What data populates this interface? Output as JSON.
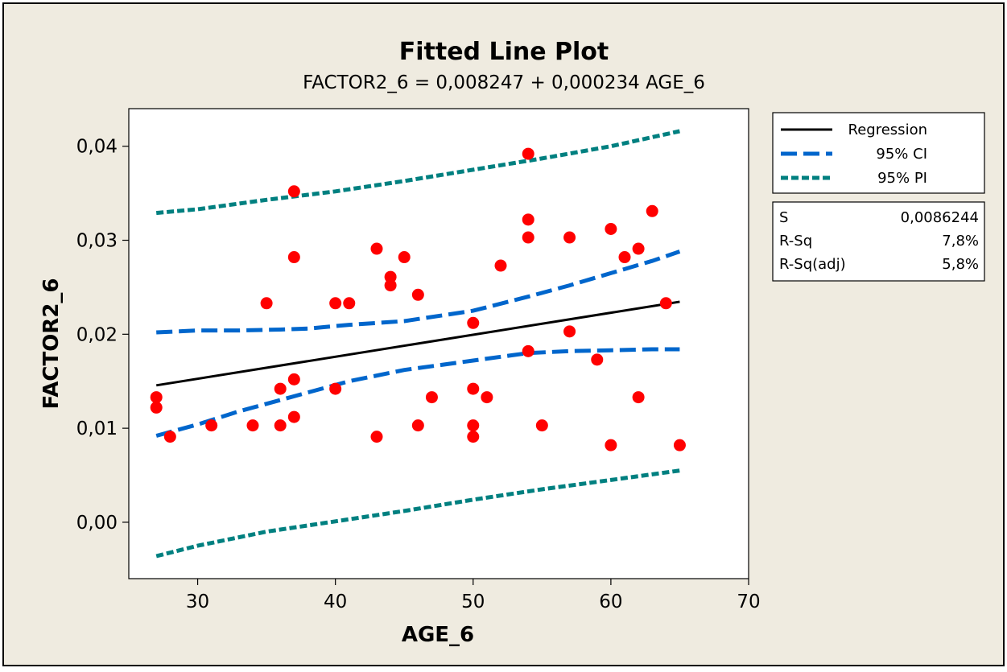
{
  "chart_data": {
    "type": "scatter",
    "title": "Fitted Line Plot",
    "subtitle": "FACTOR2_6 =  0,008247 + 0,000234 AGE_6",
    "xlabel": "AGE_6",
    "ylabel": "FACTOR2_6",
    "xlim": [
      25,
      70
    ],
    "ylim": [
      -0.006,
      0.044
    ],
    "x_ticks": [
      30,
      40,
      50,
      60,
      70
    ],
    "y_ticks": [
      0.0,
      0.01,
      0.02,
      0.03,
      0.04
    ],
    "x_tick_labels": [
      "30",
      "40",
      "50",
      "60",
      "70"
    ],
    "y_tick_labels": [
      "0,00",
      "0,01",
      "0,02",
      "0,03",
      "0,04"
    ],
    "grid": false,
    "legend_placement": "right",
    "colors": {
      "points": "#ff0000",
      "regression": "#000000",
      "ci": "#0066cc",
      "pi": "#008080",
      "background": "#efebe0"
    },
    "legend": [
      {
        "label": "Regression",
        "style": "solid",
        "color": "#000000"
      },
      {
        "label": "95% CI",
        "style": "dashed",
        "color": "#0066cc"
      },
      {
        "label": "95% PI",
        "style": "dotted",
        "color": "#008080"
      }
    ],
    "stats": [
      {
        "label": "S",
        "value": "0,0086244"
      },
      {
        "label": "R-Sq",
        "value": "7,8%"
      },
      {
        "label": "R-Sq(adj)",
        "value": "5,8%"
      }
    ],
    "regression": {
      "intercept": 0.008247,
      "slope": 0.000234,
      "x": [
        27,
        65
      ]
    },
    "ci_upper": [
      [
        27,
        0.0202
      ],
      [
        30,
        0.0204
      ],
      [
        33,
        0.0204
      ],
      [
        36,
        0.0205
      ],
      [
        38,
        0.0206
      ],
      [
        41,
        0.021
      ],
      [
        45,
        0.0214
      ],
      [
        50,
        0.0225
      ],
      [
        54,
        0.024
      ],
      [
        57,
        0.0252
      ],
      [
        60,
        0.0265
      ],
      [
        63,
        0.0278
      ],
      [
        65,
        0.0288
      ]
    ],
    "ci_lower": [
      [
        27,
        0.0092
      ],
      [
        30,
        0.0104
      ],
      [
        33,
        0.0118
      ],
      [
        36,
        0.013
      ],
      [
        38,
        0.0138
      ],
      [
        41,
        0.015
      ],
      [
        45,
        0.0162
      ],
      [
        50,
        0.0172
      ],
      [
        54,
        0.018
      ],
      [
        57,
        0.0182
      ],
      [
        60,
        0.0183
      ],
      [
        63,
        0.0184
      ],
      [
        65,
        0.0184
      ]
    ],
    "pi_upper": [
      [
        27,
        0.0329
      ],
      [
        30,
        0.0333
      ],
      [
        35,
        0.0343
      ],
      [
        40,
        0.0352
      ],
      [
        45,
        0.0363
      ],
      [
        50,
        0.0375
      ],
      [
        55,
        0.0387
      ],
      [
        60,
        0.04
      ],
      [
        65,
        0.0416
      ]
    ],
    "pi_lower": [
      [
        27,
        -0.0036
      ],
      [
        30,
        -0.0025
      ],
      [
        35,
        -0.001
      ],
      [
        40,
        0.0001
      ],
      [
        45,
        0.0012
      ],
      [
        50,
        0.0024
      ],
      [
        55,
        0.0035
      ],
      [
        60,
        0.0045
      ],
      [
        65,
        0.0055
      ]
    ],
    "points": [
      [
        27,
        0.0133
      ],
      [
        27,
        0.0122
      ],
      [
        28,
        0.0091
      ],
      [
        31,
        0.0103
      ],
      [
        34,
        0.0103
      ],
      [
        35,
        0.0233
      ],
      [
        36,
        0.0142
      ],
      [
        36,
        0.0103
      ],
      [
        37,
        0.0352
      ],
      [
        37,
        0.0282
      ],
      [
        37,
        0.0152
      ],
      [
        37,
        0.0112
      ],
      [
        40,
        0.0233
      ],
      [
        40,
        0.0142
      ],
      [
        41,
        0.0233
      ],
      [
        43,
        0.0291
      ],
      [
        43,
        0.0091
      ],
      [
        44,
        0.0261
      ],
      [
        44,
        0.0252
      ],
      [
        45,
        0.0282
      ],
      [
        46,
        0.0242
      ],
      [
        46,
        0.0103
      ],
      [
        47,
        0.0133
      ],
      [
        50,
        0.0212
      ],
      [
        50,
        0.0142
      ],
      [
        50,
        0.0103
      ],
      [
        50,
        0.0091
      ],
      [
        51,
        0.0133
      ],
      [
        52,
        0.0273
      ],
      [
        54,
        0.0392
      ],
      [
        54,
        0.0322
      ],
      [
        54,
        0.0303
      ],
      [
        54,
        0.0182
      ],
      [
        55,
        0.0103
      ],
      [
        57,
        0.0303
      ],
      [
        57,
        0.0203
      ],
      [
        59,
        0.0173
      ],
      [
        60,
        0.0312
      ],
      [
        60,
        0.0082
      ],
      [
        61,
        0.0282
      ],
      [
        62,
        0.0291
      ],
      [
        62,
        0.0133
      ],
      [
        63,
        0.0331
      ],
      [
        64,
        0.0233
      ],
      [
        65,
        0.0082
      ]
    ]
  }
}
